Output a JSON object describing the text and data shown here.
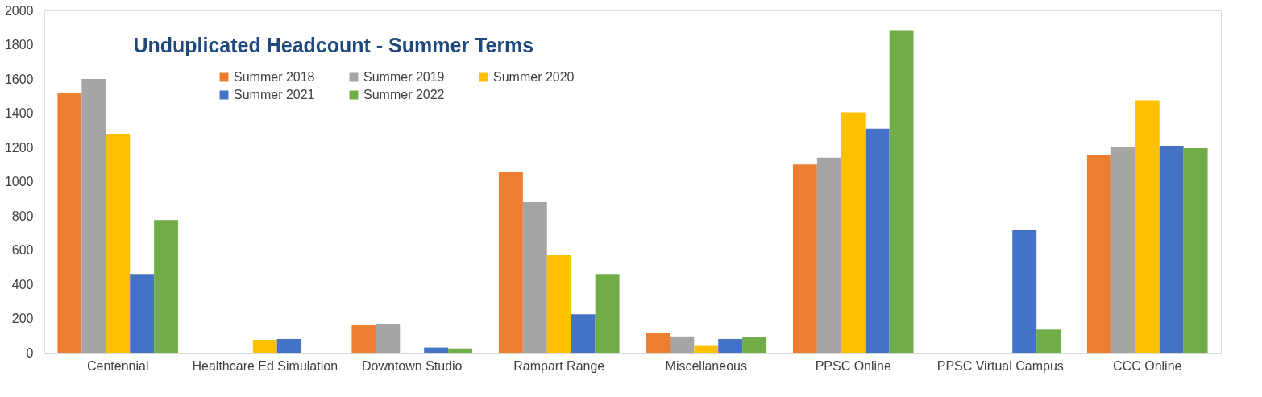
{
  "chart_data": {
    "type": "bar",
    "title": "Unduplicated Headcount  - Summer Terms",
    "categories": [
      "Centennial",
      "Healthcare Ed Simulation",
      "Downtown Studio",
      "Rampart Range",
      "Miscellaneous",
      "PPSC Online",
      "PPSC Virtual Campus",
      "CCC Online"
    ],
    "series": [
      {
        "name": "Summer 2018",
        "color": "#ed7d31",
        "values": [
          1515,
          null,
          165,
          1055,
          115,
          1100,
          null,
          1155
        ]
      },
      {
        "name": "Summer 2019",
        "color": "#a5a5a5",
        "values": [
          1600,
          null,
          170,
          880,
          95,
          1140,
          null,
          1205
        ]
      },
      {
        "name": "Summer 2020",
        "color": "#ffc000",
        "values": [
          1280,
          75,
          null,
          570,
          40,
          1405,
          null,
          1475
        ]
      },
      {
        "name": "Summer 2021",
        "color": "#4472c4",
        "values": [
          460,
          80,
          30,
          225,
          80,
          1310,
          720,
          1210
        ]
      },
      {
        "name": "Summer 2022",
        "color": "#70ad47",
        "values": [
          775,
          null,
          25,
          460,
          90,
          1885,
          135,
          1195
        ]
      }
    ],
    "ylim": [
      0,
      2000
    ],
    "yticks": [
      0,
      200,
      400,
      600,
      800,
      1000,
      1200,
      1400,
      1600,
      1800,
      2000
    ],
    "grid": false,
    "legend": "top left"
  }
}
